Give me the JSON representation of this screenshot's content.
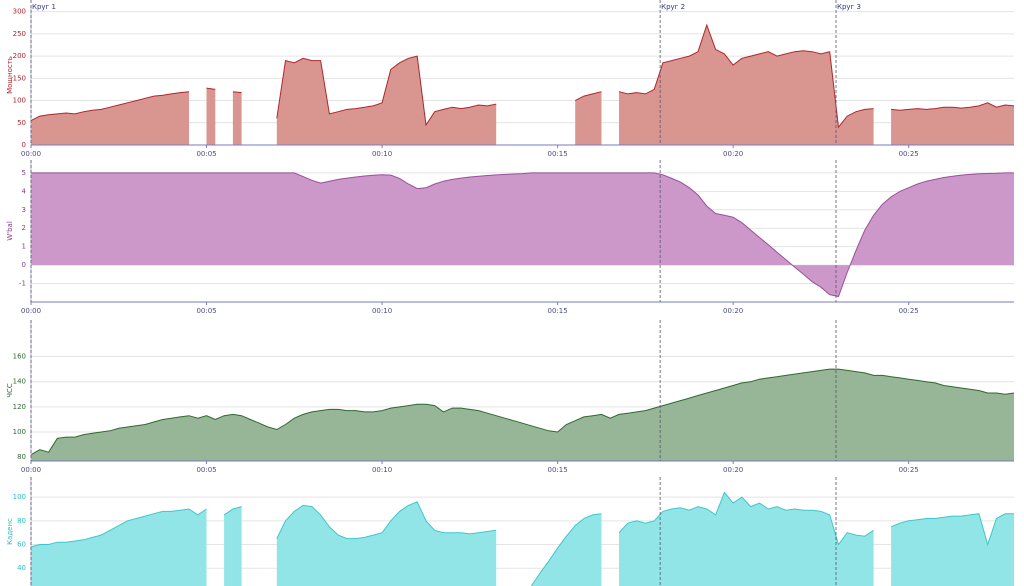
{
  "chart_data": [
    {
      "type": "area",
      "ylabel": "Мощность",
      "color": "#d99590",
      "line_color": "#b0262a",
      "label_color": "#b0262a",
      "xlim": [
        0,
        28
      ],
      "ylim": [
        0,
        315
      ],
      "yticks": [
        0,
        50,
        100,
        150,
        200,
        250,
        300
      ],
      "xticks": [
        {
          "value": 0,
          "label": "00:00"
        },
        {
          "value": 5,
          "label": "00:05"
        },
        {
          "value": 10,
          "label": "00:10"
        },
        {
          "value": 15,
          "label": "00:15"
        },
        {
          "value": 20,
          "label": "00:20"
        },
        {
          "value": 25,
          "label": "00:25"
        }
      ],
      "annotations": [
        {
          "x": 0,
          "label": "Круг 1"
        },
        {
          "x": 17.92,
          "label": "Круг 2"
        },
        {
          "x": 22.93,
          "label": "Круг 3"
        }
      ],
      "x": [
        0,
        0.25,
        0.5,
        0.75,
        1,
        1.25,
        1.5,
        1.75,
        2,
        2.25,
        2.5,
        2.75,
        3,
        3.25,
        3.5,
        3.75,
        4,
        4.25,
        4.5,
        4.75,
        5,
        5.25,
        5.5,
        5.75,
        6,
        6.25,
        6.5,
        6.75,
        7,
        7.25,
        7.5,
        7.75,
        8,
        8.25,
        8.5,
        8.75,
        9,
        9.25,
        9.5,
        9.75,
        10,
        10.25,
        10.5,
        10.75,
        11,
        11.25,
        11.5,
        11.75,
        12,
        12.25,
        12.5,
        12.75,
        13,
        13.25,
        13.5,
        13.75,
        14,
        14.25,
        14.5,
        14.75,
        15,
        15.25,
        15.5,
        15.75,
        16,
        16.25,
        16.5,
        16.75,
        17,
        17.25,
        17.5,
        17.75,
        18,
        18.25,
        18.5,
        18.75,
        19,
        19.25,
        19.5,
        19.75,
        20,
        20.25,
        20.5,
        20.75,
        21,
        21.25,
        21.5,
        21.75,
        22,
        22.25,
        22.5,
        22.75,
        23,
        23.25,
        23.5,
        23.75,
        24,
        24.25,
        24.5,
        24.75,
        25,
        25.25,
        25.5,
        25.75,
        26,
        26.25,
        26.5,
        26.75,
        27,
        27.25,
        27.5,
        27.75,
        28
      ],
      "values": [
        55,
        65,
        68,
        70,
        72,
        70,
        75,
        78,
        80,
        85,
        90,
        95,
        100,
        105,
        110,
        112,
        115,
        118,
        120,
        null,
        128,
        125,
        null,
        120,
        118,
        null,
        null,
        null,
        60,
        190,
        185,
        195,
        190,
        190,
        70,
        75,
        80,
        82,
        85,
        88,
        95,
        170,
        185,
        195,
        200,
        45,
        75,
        80,
        85,
        82,
        85,
        90,
        88,
        92,
        null,
        null,
        null,
        null,
        null,
        null,
        null,
        null,
        100,
        110,
        115,
        120,
        null,
        120,
        115,
        118,
        115,
        125,
        185,
        190,
        195,
        200,
        210,
        270,
        215,
        205,
        180,
        195,
        200,
        205,
        210,
        200,
        205,
        210,
        212,
        210,
        205,
        210,
        40,
        65,
        75,
        80,
        82,
        null,
        80,
        78,
        80,
        82,
        80,
        82,
        85,
        85,
        83,
        85,
        88,
        95,
        85,
        90,
        88
      ]
    },
    {
      "type": "area",
      "ylabel": "W'bal",
      "color": "#cb98c9",
      "line_color": "#9b4f99",
      "label_color": "#8a3f8a",
      "xlim": [
        0,
        28
      ],
      "ylim": [
        -2,
        5.7
      ],
      "yticks": [
        -1,
        0,
        1,
        2,
        3,
        4,
        5
      ],
      "xticks": [
        {
          "value": 0,
          "label": "00:00"
        },
        {
          "value": 5,
          "label": "00:05"
        },
        {
          "value": 10,
          "label": "00:10"
        },
        {
          "value": 15,
          "label": "00:15"
        },
        {
          "value": 20,
          "label": "00:20"
        },
        {
          "value": 25,
          "label": "00:25"
        }
      ],
      "x": [
        0,
        0.25,
        0.5,
        0.75,
        1,
        1.25,
        1.5,
        1.75,
        2,
        2.25,
        2.5,
        2.75,
        3,
        3.25,
        3.5,
        3.75,
        4,
        4.25,
        4.5,
        4.75,
        5,
        5.25,
        5.5,
        5.75,
        6,
        6.25,
        6.5,
        6.75,
        7,
        7.25,
        7.5,
        7.75,
        8,
        8.25,
        8.5,
        8.75,
        9,
        9.25,
        9.5,
        9.75,
        10,
        10.25,
        10.5,
        10.75,
        11,
        11.25,
        11.5,
        11.75,
        12,
        12.25,
        12.5,
        12.75,
        13,
        13.25,
        13.5,
        13.75,
        14,
        14.25,
        14.5,
        14.75,
        15,
        15.25,
        15.5,
        15.75,
        16,
        16.25,
        16.5,
        16.75,
        17,
        17.25,
        17.5,
        17.75,
        18,
        18.25,
        18.5,
        18.75,
        19,
        19.25,
        19.5,
        19.75,
        20,
        20.25,
        20.5,
        20.75,
        21,
        21.25,
        21.5,
        21.75,
        22,
        22.25,
        22.5,
        22.75,
        23,
        23.25,
        23.5,
        23.75,
        24,
        24.25,
        24.5,
        24.75,
        25,
        25.25,
        25.5,
        25.75,
        26,
        26.25,
        26.5,
        26.75,
        27,
        27.25,
        27.5,
        27.75,
        28
      ],
      "values": [
        5,
        5,
        5,
        5,
        5,
        5,
        5,
        5,
        5,
        5,
        5,
        5,
        5,
        5,
        5,
        5,
        5,
        5,
        5,
        5,
        5,
        5,
        5,
        5,
        5,
        5,
        5,
        5,
        5,
        5,
        5,
        4.8,
        4.6,
        4.45,
        4.55,
        4.65,
        4.72,
        4.78,
        4.83,
        4.87,
        4.9,
        4.88,
        4.7,
        4.4,
        4.15,
        4.2,
        4.4,
        4.55,
        4.65,
        4.72,
        4.78,
        4.82,
        4.86,
        4.89,
        4.92,
        4.94,
        4.96,
        5,
        5,
        5,
        5,
        5,
        5,
        5,
        5,
        5,
        5,
        5,
        5,
        5,
        5,
        5,
        4.9,
        4.7,
        4.5,
        4.2,
        3.8,
        3.2,
        2.8,
        2.7,
        2.6,
        2.3,
        1.9,
        1.5,
        1.1,
        0.7,
        0.3,
        -0.1,
        -0.5,
        -0.9,
        -1.2,
        -1.6,
        -1.7,
        -0.4,
        0.8,
        1.9,
        2.7,
        3.3,
        3.7,
        4,
        4.2,
        4.4,
        4.55,
        4.65,
        4.75,
        4.82,
        4.88,
        4.92,
        4.95,
        4.97,
        4.98,
        5,
        5
      ]
    },
    {
      "type": "area",
      "ylabel": "ЧСС",
      "color": "#97b597",
      "line_color": "#2f6a2f",
      "label_color": "#2f6a2f",
      "xlim": [
        0,
        28
      ],
      "ylim": [
        77,
        189
      ],
      "yticks": [
        80,
        100,
        120,
        140,
        160
      ],
      "xticks": [
        {
          "value": 0,
          "label": "00:00"
        },
        {
          "value": 5,
          "label": "00:05"
        },
        {
          "value": 10,
          "label": "00:10"
        },
        {
          "value": 15,
          "label": "00:15"
        },
        {
          "value": 20,
          "label": "00:20"
        },
        {
          "value": 25,
          "label": "00:25"
        }
      ],
      "x": [
        0,
        0.25,
        0.5,
        0.75,
        1,
        1.25,
        1.5,
        1.75,
        2,
        2.25,
        2.5,
        2.75,
        3,
        3.25,
        3.5,
        3.75,
        4,
        4.25,
        4.5,
        4.75,
        5,
        5.25,
        5.5,
        5.75,
        6,
        6.25,
        6.5,
        6.75,
        7,
        7.25,
        7.5,
        7.75,
        8,
        8.25,
        8.5,
        8.75,
        9,
        9.25,
        9.5,
        9.75,
        10,
        10.25,
        10.5,
        10.75,
        11,
        11.25,
        11.5,
        11.75,
        12,
        12.25,
        12.5,
        12.75,
        13,
        13.25,
        13.5,
        13.75,
        14,
        14.25,
        14.5,
        14.75,
        15,
        15.25,
        15.5,
        15.75,
        16,
        16.25,
        16.5,
        16.75,
        17,
        17.25,
        17.5,
        17.75,
        18,
        18.25,
        18.5,
        18.75,
        19,
        19.25,
        19.5,
        19.75,
        20,
        20.25,
        20.5,
        20.75,
        21,
        21.25,
        21.5,
        21.75,
        22,
        22.25,
        22.5,
        22.75,
        23,
        23.25,
        23.5,
        23.75,
        24,
        24.25,
        24.5,
        24.75,
        25,
        25.25,
        25.5,
        25.75,
        26,
        26.25,
        26.5,
        26.75,
        27,
        27.25,
        27.5,
        27.75,
        28
      ],
      "values": [
        82,
        86,
        84,
        95,
        96,
        96,
        98,
        99,
        100,
        101,
        103,
        104,
        105,
        106,
        108,
        110,
        111,
        112,
        113,
        111,
        113,
        110,
        113,
        114,
        113,
        110,
        107,
        104,
        102,
        106,
        111,
        114,
        116,
        117,
        118,
        118,
        117,
        117,
        116,
        116,
        117,
        119,
        120,
        121,
        122,
        122,
        121,
        116,
        119,
        119,
        118,
        117,
        115,
        113,
        111,
        109,
        107,
        105,
        103,
        101,
        100,
        106,
        109,
        112,
        113,
        114,
        111,
        114,
        115,
        116,
        117,
        119,
        121,
        123,
        125,
        127,
        129,
        131,
        133,
        135,
        137,
        139,
        140,
        142,
        143,
        144,
        145,
        146,
        147,
        148,
        149,
        150,
        150,
        149,
        148,
        147,
        145,
        145,
        144,
        143,
        142,
        141,
        140,
        139,
        137,
        136,
        135,
        134,
        133,
        131,
        131,
        130,
        131
      ]
    },
    {
      "type": "area",
      "ylabel": "Каденс",
      "color": "#92e5e7",
      "line_color": "#3cc7cd",
      "label_color": "#2bbfc6",
      "xlim": [
        0,
        28
      ],
      "ylim": [
        25,
        117
      ],
      "yticks": [
        40,
        60,
        80,
        100
      ],
      "x": [
        0,
        0.25,
        0.5,
        0.75,
        1,
        1.25,
        1.5,
        1.75,
        2,
        2.25,
        2.5,
        2.75,
        3,
        3.25,
        3.5,
        3.75,
        4,
        4.25,
        4.5,
        4.75,
        5,
        5.25,
        5.5,
        5.75,
        6,
        6.25,
        6.5,
        6.75,
        7,
        7.25,
        7.5,
        7.75,
        8,
        8.25,
        8.5,
        8.75,
        9,
        9.25,
        9.5,
        9.75,
        10,
        10.25,
        10.5,
        10.75,
        11,
        11.25,
        11.5,
        11.75,
        12,
        12.25,
        12.5,
        12.75,
        13,
        13.25,
        13.5,
        13.75,
        14,
        14.25,
        14.5,
        14.75,
        15,
        15.25,
        15.5,
        15.75,
        16,
        16.25,
        16.5,
        16.75,
        17,
        17.25,
        17.5,
        17.75,
        18,
        18.25,
        18.5,
        18.75,
        19,
        19.25,
        19.5,
        19.75,
        20,
        20.25,
        20.5,
        20.75,
        21,
        21.25,
        21.5,
        21.75,
        22,
        22.25,
        22.5,
        22.75,
        23,
        23.25,
        23.5,
        23.75,
        24,
        24.25,
        24.5,
        24.75,
        25,
        25.25,
        25.5,
        25.75,
        26,
        26.25,
        26.5,
        26.75,
        27,
        27.25,
        27.5,
        27.75,
        28
      ],
      "values": [
        58,
        60,
        60,
        62,
        62,
        63,
        64,
        66,
        68,
        72,
        76,
        80,
        82,
        84,
        86,
        88,
        88,
        89,
        90,
        85,
        90,
        null,
        85,
        90,
        92,
        null,
        null,
        null,
        65,
        80,
        88,
        93,
        92,
        85,
        75,
        68,
        65,
        65,
        66,
        68,
        70,
        80,
        88,
        93,
        96,
        80,
        72,
        70,
        70,
        70,
        69,
        70,
        71,
        72,
        null,
        null,
        null,
        25,
        36,
        46,
        57,
        67,
        76,
        82,
        85,
        86,
        null,
        70,
        78,
        80,
        78,
        80,
        88,
        90,
        91,
        89,
        92,
        90,
        85,
        104,
        95,
        100,
        92,
        95,
        90,
        92,
        89,
        90,
        89,
        89,
        88,
        85,
        60,
        70,
        68,
        67,
        72,
        null,
        75,
        78,
        80,
        81,
        82,
        82,
        83,
        84,
        84,
        85,
        86,
        60,
        82,
        86,
        86
      ]
    }
  ]
}
